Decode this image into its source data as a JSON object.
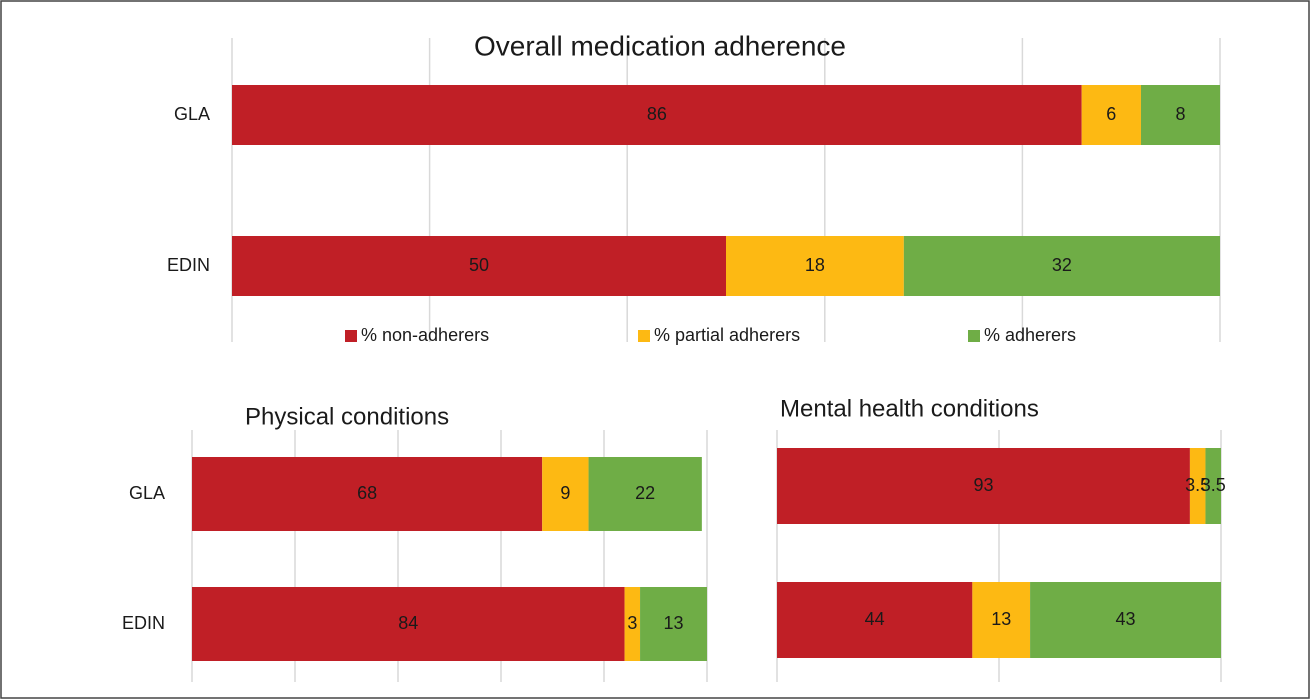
{
  "chart_data": [
    {
      "type": "stacked-barh",
      "title": "Overall medication adherence",
      "categories": [
        "GLA",
        "EDIN"
      ],
      "series": [
        {
          "name": "% non-adherers",
          "color": "#c01f26",
          "values": [
            86,
            50
          ]
        },
        {
          "name": "% partial adherers",
          "color": "#fdb913",
          "values": [
            6,
            18
          ]
        },
        {
          "name": "% adherers",
          "color": "#6fad46",
          "values": [
            8,
            32
          ]
        }
      ],
      "xlim": [
        0,
        100
      ],
      "xticks": [
        0,
        20,
        40,
        60,
        80,
        100
      ],
      "grid": true,
      "legend": "bottom"
    },
    {
      "type": "stacked-barh",
      "title": "Physical conditions",
      "categories": [
        "GLA",
        "EDIN"
      ],
      "series": [
        {
          "color": "#c01f26",
          "values": [
            68,
            84
          ]
        },
        {
          "color": "#fdb913",
          "values": [
            9,
            3
          ]
        },
        {
          "color": "#6fad46",
          "values": [
            22,
            13
          ]
        }
      ],
      "xlim": [
        0,
        100
      ],
      "xticks": [
        0,
        20,
        40,
        60,
        80,
        100
      ],
      "grid": true
    },
    {
      "type": "stacked-barh",
      "title": "Mental health conditions",
      "categories": [
        null,
        null
      ],
      "series": [
        {
          "color": "#c01f26",
          "values": [
            93,
            44
          ]
        },
        {
          "color": "#fdb913",
          "values": [
            3.5,
            13
          ]
        },
        {
          "color": "#6fad46",
          "values": [
            3.5,
            43
          ]
        }
      ],
      "xlim": [
        0,
        100
      ],
      "xticks": [
        0,
        50,
        100
      ],
      "grid": true
    }
  ]
}
